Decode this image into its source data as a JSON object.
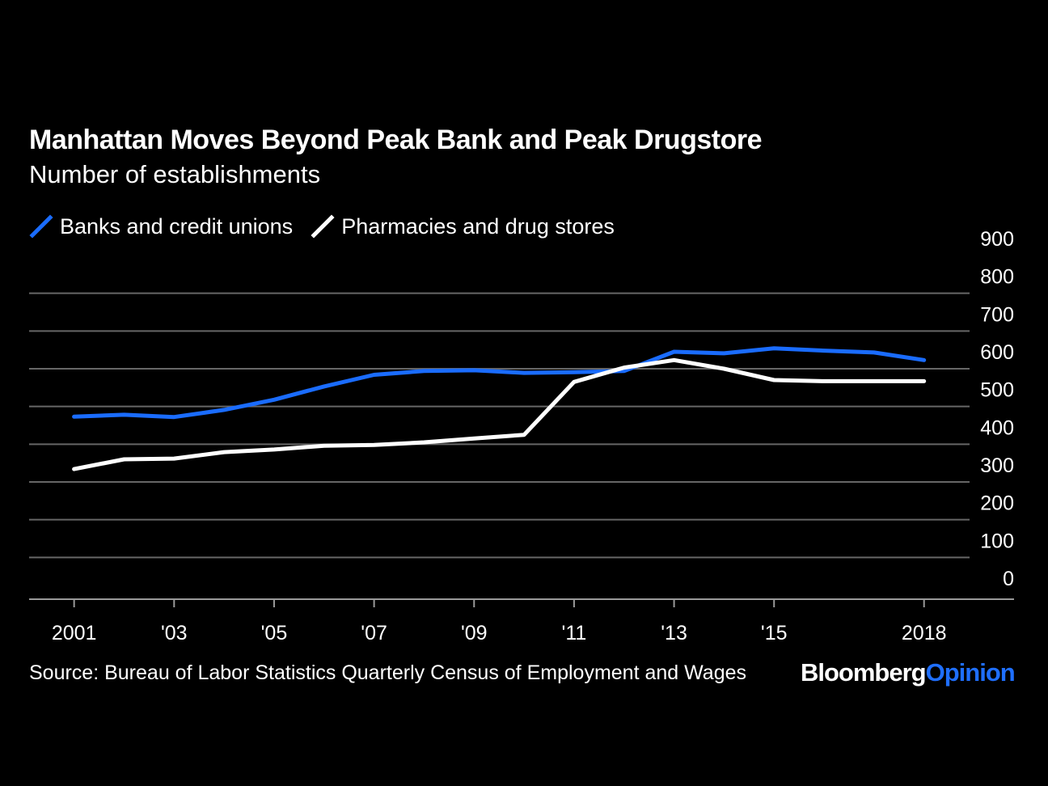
{
  "colors": {
    "background": "#000000",
    "banks": "#1a6cff",
    "pharmacies": "#ffffff",
    "grid": "#666666",
    "text": "#ffffff"
  },
  "chart_data": {
    "type": "line",
    "title": "Manhattan Moves Beyond Peak Bank and Peak Drugstore",
    "subtitle": "Number of establishments",
    "x": [
      2001,
      2002,
      2003,
      2004,
      2005,
      2006,
      2007,
      2008,
      2009,
      2010,
      2011,
      2012,
      2013,
      2014,
      2015,
      2016,
      2017,
      2018
    ],
    "x_tick_values": [
      2001,
      2003,
      2005,
      2007,
      2009,
      2011,
      2013,
      2015,
      2018
    ],
    "x_tick_labels": [
      "2001",
      "'03",
      "'05",
      "'07",
      "'09",
      "'11",
      "'13",
      "'15",
      "2018"
    ],
    "xlim": [
      2000.1,
      2019.8
    ],
    "ylim": [
      0,
      900
    ],
    "y_ticks": [
      0,
      100,
      200,
      300,
      400,
      500,
      600,
      700,
      800,
      900
    ],
    "y_axis_side": "right",
    "grid": true,
    "legend_position": "top-left",
    "series": [
      {
        "name": "Banks and credit unions",
        "color": "#1a6cff",
        "values": [
          473,
          478,
          472,
          491,
          518,
          553,
          584,
          594,
          596,
          589,
          591,
          594,
          645,
          641,
          654,
          648,
          643,
          623
        ]
      },
      {
        "name": "Pharmacies and drug stores",
        "color": "#ffffff",
        "values": [
          334,
          360,
          362,
          379,
          386,
          396,
          398,
          405,
          415,
          425,
          565,
          603,
          623,
          600,
          570,
          567,
          567,
          567
        ]
      }
    ],
    "source": "Source: Bureau of Labor Statistics Quarterly Census of Employment and Wages"
  },
  "brand": {
    "part1": "Bloomberg",
    "part2": "Opinion"
  }
}
